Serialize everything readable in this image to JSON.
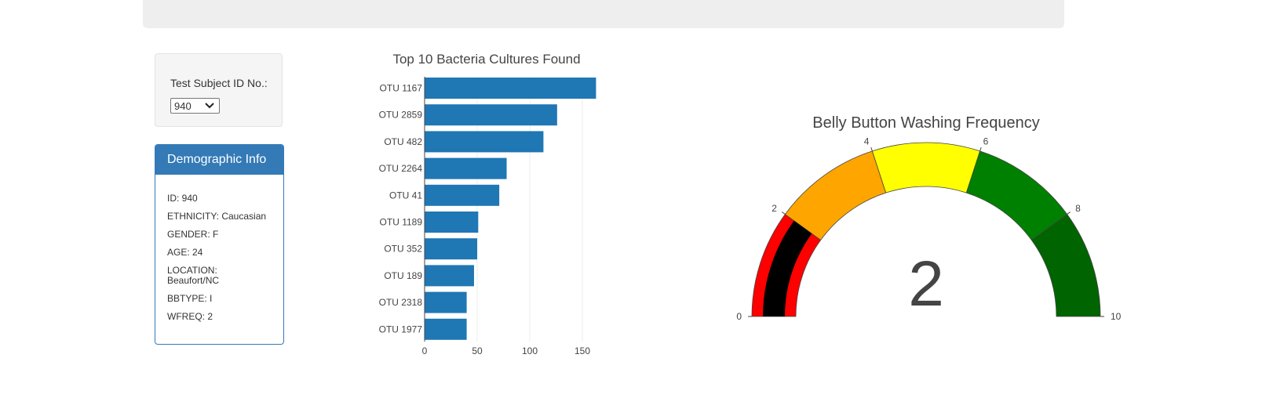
{
  "selector": {
    "label": "Test Subject ID No.:",
    "selected": "940"
  },
  "demographic": {
    "title": "Demographic Info",
    "rows": [
      "ID: 940",
      "ETHNICITY: Caucasian",
      "GENDER: F",
      "AGE: 24",
      "LOCATION:",
      "Beaufort/NC",
      "BBTYPE: I",
      "WFREQ: 2"
    ]
  },
  "chart_data": [
    {
      "type": "bar",
      "orientation": "horizontal",
      "title": "Top 10 Bacteria Cultures Found",
      "categories": [
        "OTU 1167",
        "OTU 2859",
        "OTU 482",
        "OTU 2264",
        "OTU 41",
        "OTU 1189",
        "OTU 352",
        "OTU 189",
        "OTU 2318",
        "OTU 1977"
      ],
      "values": [
        163,
        126,
        113,
        78,
        71,
        51,
        50,
        47,
        40,
        40
      ],
      "xticks": [
        "0",
        "50",
        "100",
        "150"
      ],
      "xlim": [
        0,
        163
      ],
      "grid": true,
      "color": "#1f77b4"
    },
    {
      "type": "gauge",
      "title": "Belly Button Washing Frequency",
      "value": 2,
      "value_label": "2",
      "range": [
        0,
        10
      ],
      "ticks": [
        "0",
        "2",
        "4",
        "6",
        "8",
        "10"
      ],
      "steps": [
        {
          "range": [
            0,
            2
          ],
          "color": "#ff0000"
        },
        {
          "range": [
            2,
            4
          ],
          "color": "#ffa500"
        },
        {
          "range": [
            4,
            6
          ],
          "color": "#ffff00"
        },
        {
          "range": [
            6,
            8
          ],
          "color": "#008000"
        },
        {
          "range": [
            8,
            10
          ],
          "color": "#006400"
        }
      ],
      "bar_color": "#000000"
    }
  ]
}
